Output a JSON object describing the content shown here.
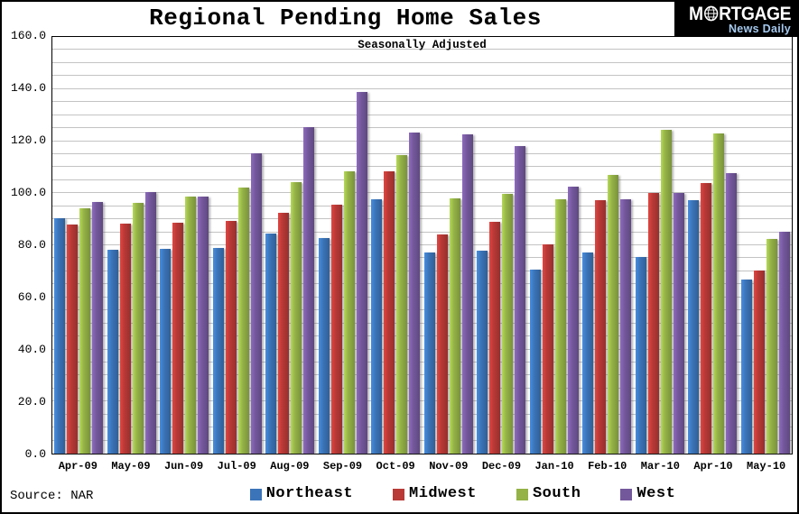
{
  "logo": {
    "brand_m": "M",
    "brand_rtgage": "RTGAGE",
    "brand_sub": "News Daily",
    "bg_color": "#000000",
    "sub_color": "#a5c9ee"
  },
  "source_note": "Source: NAR",
  "chart_data": {
    "type": "bar",
    "title": "Regional Pending Home Sales",
    "subtitle": "Seasonally Adjusted",
    "categories": [
      "Apr-09",
      "May-09",
      "Jun-09",
      "Jul-09",
      "Aug-09",
      "Sep-09",
      "Oct-09",
      "Nov-09",
      "Dec-09",
      "Jan-10",
      "Feb-10",
      "Mar-10",
      "Apr-10",
      "May-10"
    ],
    "series": [
      {
        "name": "Northeast",
        "color": "#3b74b8",
        "values": [
          90.3,
          78.2,
          78.7,
          78.8,
          84.6,
          82.8,
          97.8,
          77.1,
          77.8,
          70.8,
          77.4,
          75.4,
          97.2,
          66.7
        ]
      },
      {
        "name": "Midwest",
        "color": "#b83936",
        "values": [
          88.0,
          88.3,
          88.5,
          89.5,
          92.4,
          95.7,
          108.5,
          84.2,
          88.9,
          80.3,
          97.3,
          100.0,
          103.9,
          70.4
        ]
      },
      {
        "name": "South",
        "color": "#94b247",
        "values": [
          94.1,
          96.4,
          98.7,
          102.2,
          104.3,
          108.4,
          114.7,
          98.1,
          99.8,
          97.8,
          107.0,
          124.5,
          123.1,
          82.3
        ]
      },
      {
        "name": "West",
        "color": "#74589c",
        "values": [
          96.6,
          100.4,
          98.7,
          115.3,
          125.4,
          139.0,
          123.3,
          122.6,
          118.2,
          102.6,
          97.8,
          100.2,
          107.8,
          85.1
        ]
      }
    ],
    "ylim": [
      0,
      160
    ],
    "ytick_interval": 20,
    "ytick_decimals": 1,
    "gridline_interval": 5,
    "grid": true,
    "gridline_color": "#c3c3c3",
    "legend_position": "bottom"
  }
}
